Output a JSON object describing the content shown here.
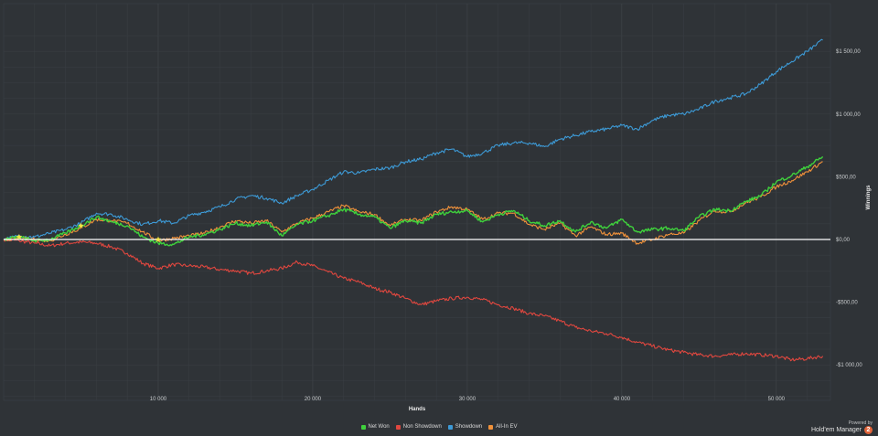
{
  "chart_data": {
    "type": "line",
    "xlabel": "Hands",
    "ylabel": "Winnings",
    "xlim": [
      0,
      53500
    ],
    "ylim": [
      -1300,
      1650
    ],
    "x_ticks": [
      {
        "value": 10000,
        "label": "10 000"
      },
      {
        "value": 20000,
        "label": "20 000"
      },
      {
        "value": 30000,
        "label": "30 000"
      },
      {
        "value": 40000,
        "label": "40 000"
      },
      {
        "value": 50000,
        "label": "50 000"
      }
    ],
    "y_ticks": [
      {
        "value": 1500,
        "label": "$1 500,00"
      },
      {
        "value": 1000,
        "label": "$1 000,00"
      },
      {
        "value": 500,
        "label": "$500,00"
      },
      {
        "value": 0,
        "label": "$0,00"
      },
      {
        "value": -500,
        "label": "-$500,00"
      },
      {
        "value": -1000,
        "label": "-$1 000,00"
      }
    ],
    "grid": true,
    "legend_position": "bottom-center",
    "series": [
      {
        "name": "Net Won",
        "color": "#3fd13c",
        "points": [
          [
            0,
            0
          ],
          [
            1000,
            20
          ],
          [
            2000,
            -10
          ],
          [
            3000,
            0
          ],
          [
            4000,
            50
          ],
          [
            5000,
            110
          ],
          [
            6000,
            180
          ],
          [
            7000,
            140
          ],
          [
            8000,
            110
          ],
          [
            9000,
            20
          ],
          [
            10000,
            -30
          ],
          [
            11000,
            -40
          ],
          [
            12000,
            20
          ],
          [
            13000,
            40
          ],
          [
            14000,
            80
          ],
          [
            15000,
            130
          ],
          [
            16000,
            110
          ],
          [
            17000,
            140
          ],
          [
            18000,
            30
          ],
          [
            19000,
            120
          ],
          [
            20000,
            150
          ],
          [
            21000,
            190
          ],
          [
            22000,
            240
          ],
          [
            23000,
            200
          ],
          [
            24000,
            180
          ],
          [
            25000,
            90
          ],
          [
            26000,
            150
          ],
          [
            27000,
            130
          ],
          [
            28000,
            200
          ],
          [
            29000,
            220
          ],
          [
            30000,
            230
          ],
          [
            31000,
            140
          ],
          [
            32000,
            200
          ],
          [
            33000,
            230
          ],
          [
            34000,
            150
          ],
          [
            35000,
            110
          ],
          [
            36000,
            150
          ],
          [
            37000,
            60
          ],
          [
            38000,
            140
          ],
          [
            39000,
            90
          ],
          [
            40000,
            160
          ],
          [
            41000,
            60
          ],
          [
            42000,
            80
          ],
          [
            43000,
            90
          ],
          [
            44000,
            70
          ],
          [
            45000,
            180
          ],
          [
            46000,
            240
          ],
          [
            47000,
            230
          ],
          [
            48000,
            300
          ],
          [
            49000,
            350
          ],
          [
            50000,
            460
          ],
          [
            51000,
            510
          ],
          [
            52000,
            580
          ],
          [
            53000,
            660
          ]
        ]
      },
      {
        "name": "Non Showdown",
        "color": "#e0473f",
        "points": [
          [
            0,
            0
          ],
          [
            1000,
            -10
          ],
          [
            2000,
            -30
          ],
          [
            3000,
            -50
          ],
          [
            4000,
            -30
          ],
          [
            5000,
            -20
          ],
          [
            6000,
            -30
          ],
          [
            7000,
            -60
          ],
          [
            8000,
            -110
          ],
          [
            9000,
            -190
          ],
          [
            10000,
            -230
          ],
          [
            11000,
            -200
          ],
          [
            12000,
            -210
          ],
          [
            13000,
            -220
          ],
          [
            14000,
            -240
          ],
          [
            15000,
            -250
          ],
          [
            16000,
            -270
          ],
          [
            17000,
            -250
          ],
          [
            18000,
            -230
          ],
          [
            19000,
            -180
          ],
          [
            20000,
            -210
          ],
          [
            21000,
            -260
          ],
          [
            22000,
            -310
          ],
          [
            23000,
            -340
          ],
          [
            24000,
            -390
          ],
          [
            25000,
            -420
          ],
          [
            26000,
            -470
          ],
          [
            27000,
            -520
          ],
          [
            28000,
            -490
          ],
          [
            29000,
            -470
          ],
          [
            30000,
            -460
          ],
          [
            31000,
            -480
          ],
          [
            32000,
            -520
          ],
          [
            33000,
            -550
          ],
          [
            34000,
            -590
          ],
          [
            35000,
            -610
          ],
          [
            36000,
            -650
          ],
          [
            37000,
            -700
          ],
          [
            38000,
            -730
          ],
          [
            39000,
            -750
          ],
          [
            40000,
            -780
          ],
          [
            41000,
            -820
          ],
          [
            42000,
            -850
          ],
          [
            43000,
            -880
          ],
          [
            44000,
            -900
          ],
          [
            45000,
            -920
          ],
          [
            46000,
            -930
          ],
          [
            47000,
            -920
          ],
          [
            48000,
            -910
          ],
          [
            49000,
            -920
          ],
          [
            50000,
            -930
          ],
          [
            51000,
            -960
          ],
          [
            52000,
            -950
          ],
          [
            53000,
            -930
          ]
        ]
      },
      {
        "name": "Showdown",
        "color": "#3d9ad6",
        "points": [
          [
            0,
            0
          ],
          [
            1000,
            30
          ],
          [
            2000,
            20
          ],
          [
            3000,
            50
          ],
          [
            4000,
            80
          ],
          [
            5000,
            130
          ],
          [
            6000,
            210
          ],
          [
            7000,
            200
          ],
          [
            8000,
            160
          ],
          [
            9000,
            120
          ],
          [
            10000,
            150
          ],
          [
            11000,
            130
          ],
          [
            12000,
            190
          ],
          [
            13000,
            220
          ],
          [
            14000,
            260
          ],
          [
            15000,
            320
          ],
          [
            16000,
            350
          ],
          [
            17000,
            330
          ],
          [
            18000,
            290
          ],
          [
            19000,
            350
          ],
          [
            20000,
            400
          ],
          [
            21000,
            470
          ],
          [
            22000,
            540
          ],
          [
            23000,
            530
          ],
          [
            24000,
            560
          ],
          [
            25000,
            570
          ],
          [
            26000,
            620
          ],
          [
            27000,
            640
          ],
          [
            28000,
            690
          ],
          [
            29000,
            720
          ],
          [
            30000,
            660
          ],
          [
            31000,
            690
          ],
          [
            32000,
            750
          ],
          [
            33000,
            770
          ],
          [
            34000,
            770
          ],
          [
            35000,
            740
          ],
          [
            36000,
            800
          ],
          [
            37000,
            830
          ],
          [
            38000,
            860
          ],
          [
            39000,
            880
          ],
          [
            40000,
            910
          ],
          [
            41000,
            880
          ],
          [
            42000,
            950
          ],
          [
            43000,
            990
          ],
          [
            44000,
            1000
          ],
          [
            45000,
            1040
          ],
          [
            46000,
            1100
          ],
          [
            47000,
            1130
          ],
          [
            48000,
            1160
          ],
          [
            49000,
            1240
          ],
          [
            50000,
            1340
          ],
          [
            51000,
            1420
          ],
          [
            52000,
            1500
          ],
          [
            53000,
            1590
          ]
        ]
      },
      {
        "name": "All-In EV",
        "color": "#f0913a",
        "points": [
          [
            0,
            0
          ],
          [
            1000,
            10
          ],
          [
            2000,
            0
          ],
          [
            3000,
            -10
          ],
          [
            4000,
            40
          ],
          [
            5000,
            90
          ],
          [
            6000,
            160
          ],
          [
            7000,
            150
          ],
          [
            8000,
            130
          ],
          [
            9000,
            60
          ],
          [
            10000,
            -10
          ],
          [
            11000,
            10
          ],
          [
            12000,
            30
          ],
          [
            13000,
            50
          ],
          [
            14000,
            100
          ],
          [
            15000,
            150
          ],
          [
            16000,
            130
          ],
          [
            17000,
            150
          ],
          [
            18000,
            60
          ],
          [
            19000,
            130
          ],
          [
            20000,
            170
          ],
          [
            21000,
            220
          ],
          [
            22000,
            270
          ],
          [
            23000,
            220
          ],
          [
            24000,
            200
          ],
          [
            25000,
            110
          ],
          [
            26000,
            160
          ],
          [
            27000,
            150
          ],
          [
            28000,
            220
          ],
          [
            29000,
            260
          ],
          [
            30000,
            240
          ],
          [
            31000,
            160
          ],
          [
            32000,
            210
          ],
          [
            33000,
            210
          ],
          [
            34000,
            120
          ],
          [
            35000,
            80
          ],
          [
            36000,
            130
          ],
          [
            37000,
            30
          ],
          [
            38000,
            100
          ],
          [
            39000,
            40
          ],
          [
            40000,
            50
          ],
          [
            41000,
            -30
          ],
          [
            42000,
            0
          ],
          [
            43000,
            40
          ],
          [
            44000,
            50
          ],
          [
            45000,
            150
          ],
          [
            46000,
            230
          ],
          [
            47000,
            220
          ],
          [
            48000,
            290
          ],
          [
            49000,
            340
          ],
          [
            50000,
            420
          ],
          [
            51000,
            470
          ],
          [
            52000,
            540
          ],
          [
            53000,
            620
          ]
        ]
      }
    ],
    "all_in_markers": [
      {
        "x": 1000,
        "y": 20
      },
      {
        "x": 5000,
        "y": 110
      },
      {
        "x": 10000,
        "y": 0
      }
    ]
  },
  "brand": {
    "powered_by": "Powered by",
    "name": "Hold'em Manager",
    "badge": "2"
  }
}
